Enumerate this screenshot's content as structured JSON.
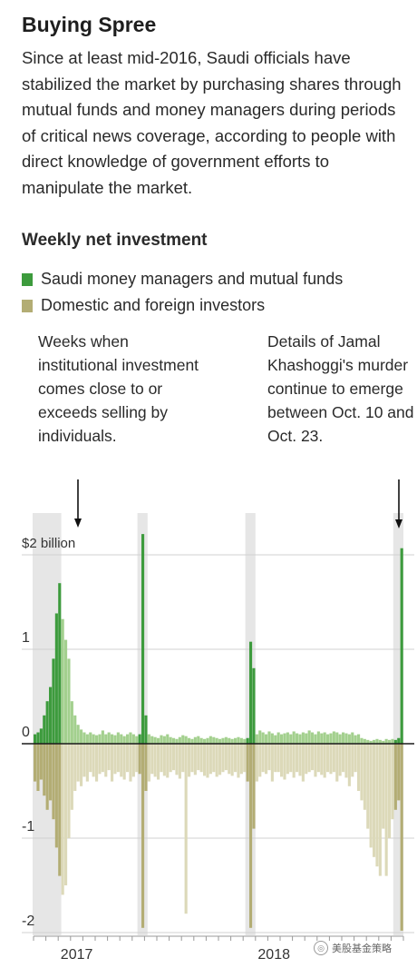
{
  "header": {
    "title": "Buying Spree",
    "subtitle": "Since at least mid-2016, Saudi officials have stabilized the market by purchasing shares through mutual funds and money managers during periods of critical news coverage, according to people with direct knowledge of government efforts to manipulate the market."
  },
  "annotations": {
    "left": "Weeks when institutional investment comes close to or exceeds selling by individuals.",
    "right": "Details of Jamal Khashoggi's murder continue to emerge between Oct. 10 and Oct. 23."
  },
  "watermark": "美股基金策略",
  "colors": {
    "institutional": "#3d9b3d",
    "institutional_light": "#a3d08e",
    "individual": "#b3ad74",
    "individual_light": "#dcd9b9",
    "highlight": "#e6e6e6",
    "grid": "#d0d0d0"
  },
  "chart_data": {
    "type": "bar",
    "title": "Weekly net investment",
    "ylabel": "",
    "ylim": [
      -2.0,
      2.3
    ],
    "y_ticks": [
      {
        "value": 2,
        "label": "$2 billion"
      },
      {
        "value": 1,
        "label": "1"
      },
      {
        "value": 0,
        "label": "0"
      },
      {
        "value": -1,
        "label": "-1"
      },
      {
        "value": -2,
        "label": "-2"
      }
    ],
    "x_tick_labels": [
      {
        "week": 14,
        "label": "2017"
      },
      {
        "week": 78,
        "label": "2018"
      }
    ],
    "weeks": 120,
    "highlight_periods": [
      {
        "start": 0,
        "end": 8
      },
      {
        "start": 34,
        "end": 36
      },
      {
        "start": 69,
        "end": 71
      },
      {
        "start": 117,
        "end": 119
      }
    ],
    "series": [
      {
        "name": "Saudi money managers and mutual funds",
        "values": [
          0.1,
          0.12,
          0.16,
          0.3,
          0.45,
          0.6,
          0.9,
          1.38,
          1.7,
          1.32,
          1.1,
          0.9,
          0.45,
          0.3,
          0.2,
          0.15,
          0.12,
          0.1,
          0.12,
          0.1,
          0.09,
          0.1,
          0.14,
          0.1,
          0.12,
          0.1,
          0.09,
          0.12,
          0.1,
          0.08,
          0.1,
          0.12,
          0.1,
          0.08,
          0.1,
          2.22,
          0.3,
          0.1,
          0.08,
          0.07,
          0.06,
          0.09,
          0.08,
          0.1,
          0.07,
          0.06,
          0.05,
          0.07,
          0.09,
          0.08,
          0.06,
          0.05,
          0.07,
          0.08,
          0.06,
          0.05,
          0.06,
          0.08,
          0.07,
          0.06,
          0.05,
          0.06,
          0.07,
          0.06,
          0.05,
          0.06,
          0.07,
          0.06,
          0.05,
          0.06,
          1.08,
          0.8,
          0.1,
          0.14,
          0.12,
          0.1,
          0.13,
          0.11,
          0.09,
          0.12,
          0.1,
          0.11,
          0.12,
          0.1,
          0.13,
          0.11,
          0.1,
          0.12,
          0.11,
          0.14,
          0.12,
          0.1,
          0.13,
          0.11,
          0.12,
          0.1,
          0.11,
          0.13,
          0.12,
          0.1,
          0.12,
          0.11,
          0.1,
          0.12,
          0.09,
          0.1,
          0.06,
          0.05,
          0.04,
          0.03,
          0.04,
          0.05,
          0.04,
          0.03,
          0.05,
          0.04,
          0.05,
          0.04,
          0.06,
          2.07
        ],
        "colors": [
          "#3d9b3d",
          "#a3d08e"
        ]
      },
      {
        "name": "Domestic and foreign investors",
        "values": [
          -0.4,
          -0.5,
          -0.38,
          -0.55,
          -0.7,
          -0.6,
          -0.8,
          -1.1,
          -1.4,
          -1.6,
          -1.5,
          -1.0,
          -0.7,
          -0.5,
          -0.4,
          -0.45,
          -0.35,
          -0.4,
          -0.3,
          -0.35,
          -0.4,
          -0.32,
          -0.3,
          -0.35,
          -0.28,
          -0.4,
          -0.32,
          -0.3,
          -0.35,
          -0.38,
          -0.3,
          -0.4,
          -0.35,
          -0.3,
          -0.32,
          -1.95,
          -0.5,
          -0.4,
          -0.32,
          -0.35,
          -0.38,
          -0.3,
          -0.34,
          -0.36,
          -0.3,
          -0.28,
          -0.33,
          -0.37,
          -0.3,
          -1.8,
          -0.35,
          -0.3,
          -0.33,
          -0.28,
          -0.3,
          -0.34,
          -0.36,
          -0.32,
          -0.3,
          -0.35,
          -0.33,
          -0.3,
          -0.28,
          -0.32,
          -0.34,
          -0.3,
          -0.36,
          -0.32,
          -0.3,
          -0.4,
          -1.95,
          -0.9,
          -0.4,
          -0.35,
          -0.3,
          -0.32,
          -0.28,
          -0.4,
          -0.3,
          -0.3,
          -0.35,
          -0.38,
          -0.32,
          -0.3,
          -0.36,
          -0.3,
          -0.34,
          -0.4,
          -0.32,
          -0.3,
          -0.28,
          -0.35,
          -0.3,
          -0.33,
          -0.36,
          -0.3,
          -0.32,
          -0.3,
          -0.4,
          -0.34,
          -0.3,
          -0.36,
          -0.45,
          -0.35,
          -0.3,
          -0.5,
          -0.6,
          -0.7,
          -0.9,
          -1.1,
          -1.2,
          -1.3,
          -1.4,
          -0.9,
          -1.4,
          -1.0,
          -0.8,
          -0.7,
          -0.6,
          -1.98
        ],
        "colors": [
          "#b3ad74",
          "#dcd9b9"
        ]
      }
    ]
  }
}
